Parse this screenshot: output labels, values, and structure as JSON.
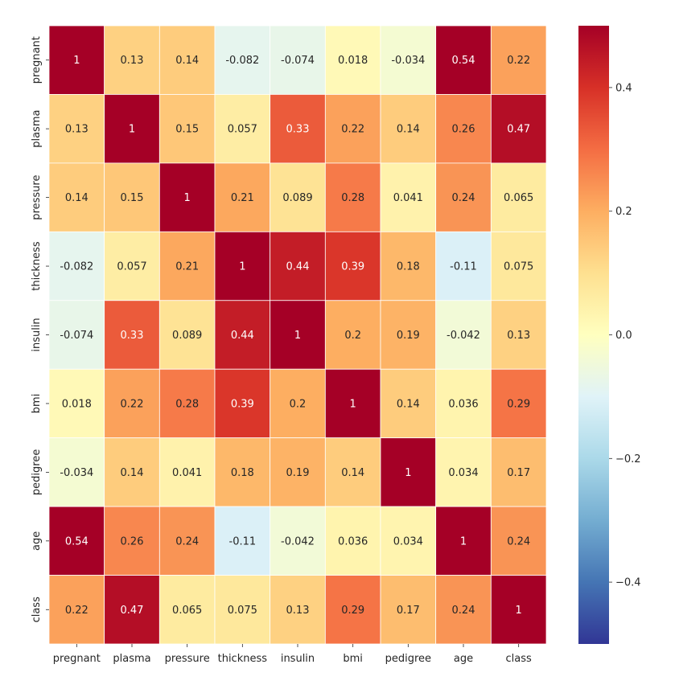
{
  "chart_data": {
    "type": "heatmap",
    "title": "",
    "xlabel": "",
    "ylabel": "",
    "x_labels": [
      "pregnant",
      "plasma",
      "pressure",
      "thickness",
      "insulin",
      "bmi",
      "pedigree",
      "age",
      "class"
    ],
    "y_labels": [
      "pregnant",
      "plasma",
      "pressure",
      "thickness",
      "insulin",
      "bmi",
      "pedigree",
      "age",
      "class"
    ],
    "values": [
      [
        1,
        0.13,
        0.14,
        -0.082,
        -0.074,
        0.018,
        -0.034,
        0.54,
        0.22
      ],
      [
        0.13,
        1,
        0.15,
        0.057,
        0.33,
        0.22,
        0.14,
        0.26,
        0.47
      ],
      [
        0.14,
        0.15,
        1,
        0.21,
        0.089,
        0.28,
        0.041,
        0.24,
        0.065
      ],
      [
        -0.082,
        0.057,
        0.21,
        1,
        0.44,
        0.39,
        0.18,
        -0.11,
        0.075
      ],
      [
        -0.074,
        0.33,
        0.089,
        0.44,
        1,
        0.2,
        0.19,
        -0.042,
        0.13
      ],
      [
        0.018,
        0.22,
        0.28,
        0.39,
        0.2,
        1,
        0.14,
        0.036,
        0.29
      ],
      [
        -0.034,
        0.14,
        0.041,
        0.18,
        0.19,
        0.14,
        1,
        0.034,
        0.17
      ],
      [
        0.54,
        0.26,
        0.24,
        -0.11,
        -0.042,
        0.036,
        0.034,
        1,
        0.24
      ],
      [
        0.22,
        0.47,
        0.065,
        0.075,
        0.13,
        0.29,
        0.17,
        0.24,
        1
      ]
    ],
    "cell_labels": [
      [
        "1",
        "0.13",
        "0.14",
        "-0.082",
        "-0.074",
        "0.018",
        "-0.034",
        "0.54",
        "0.22"
      ],
      [
        "0.13",
        "1",
        "0.15",
        "0.057",
        "0.33",
        "0.22",
        "0.14",
        "0.26",
        "0.47"
      ],
      [
        "0.14",
        "0.15",
        "1",
        "0.21",
        "0.089",
        "0.28",
        "0.041",
        "0.24",
        "0.065"
      ],
      [
        "-0.082",
        "0.057",
        "0.21",
        "1",
        "0.44",
        "0.39",
        "0.18",
        "-0.11",
        "0.075"
      ],
      [
        "-0.074",
        "0.33",
        "0.089",
        "0.44",
        "1",
        "0.2",
        "0.19",
        "-0.042",
        "0.13"
      ],
      [
        "0.018",
        "0.22",
        "0.28",
        "0.39",
        "0.2",
        "1",
        "0.14",
        "0.036",
        "0.29"
      ],
      [
        "-0.034",
        "0.14",
        "0.041",
        "0.18",
        "0.19",
        "0.14",
        "1",
        "0.034",
        "0.17"
      ],
      [
        "0.54",
        "0.26",
        "0.24",
        "-0.11",
        "-0.042",
        "0.036",
        "0.034",
        "1",
        "0.24"
      ],
      [
        "0.22",
        "0.47",
        "0.065",
        "0.075",
        "0.13",
        "0.29",
        "0.17",
        "0.24",
        "1"
      ]
    ],
    "colormap": "RdYlBu_r",
    "vmin": -0.5,
    "vmax": 0.5,
    "colorbar": {
      "ticks": [
        0.4,
        0.2,
        0.0,
        -0.2,
        -0.4
      ],
      "tick_labels": [
        "0.4",
        "0.2",
        "0.0",
        "−0.2",
        "−0.4"
      ],
      "placement": "right"
    },
    "cell_border_color": "#ffffff",
    "text_color_dark": "#262626",
    "text_color_light": "#ffffff"
  }
}
